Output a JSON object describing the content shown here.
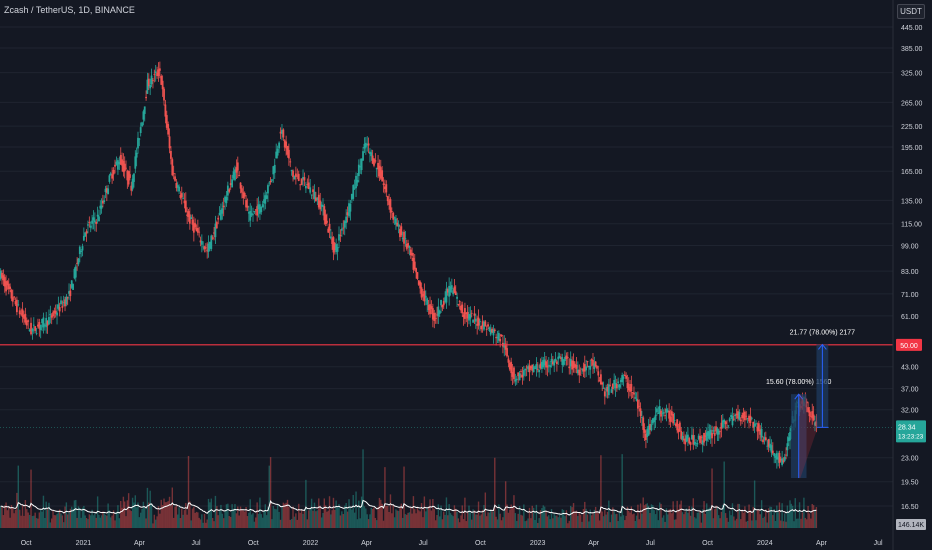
{
  "header": {
    "symbol_title": "Zcash / TetherUS, 1D, BINANCE",
    "unit_label": "USDT"
  },
  "colors": {
    "background": "#141823",
    "up": "#26a69a",
    "down": "#ef5350",
    "support_line": "#f23645",
    "projection_fill": "#1e3a5f",
    "projection_stroke": "#2962ff",
    "volume_ma": "#ffffff",
    "text": "#d1d4dc"
  },
  "chart_data": {
    "type": "candlestick",
    "y_scale": "log",
    "y_ticks": [
      "445.00",
      "385.00",
      "325.00",
      "265.00",
      "225.00",
      "195.00",
      "165.00",
      "135.00",
      "115.00",
      "99.00",
      "83.00",
      "71.00",
      "61.00",
      "50.00",
      "43.00",
      "37.00",
      "32.00",
      "28.34",
      "23.00",
      "19.50",
      "16.50"
    ],
    "y_axis_labels": [
      "445.00",
      "385.00",
      "325.00",
      "265.00",
      "225.00",
      "195.00",
      "165.00",
      "135.00",
      "115.00",
      "99.00",
      "83.00",
      "71.00",
      "61.00",
      "43.00",
      "37.00",
      "32.00",
      "23.00",
      "19.50",
      "16.50"
    ],
    "x_ticks": [
      "Oct",
      "2021",
      "Apr",
      "Jul",
      "Oct",
      "2022",
      "Apr",
      "Jul",
      "Oct",
      "2023",
      "Apr",
      "Jul",
      "Oct",
      "2024",
      "Apr",
      "Jul"
    ],
    "price_path": [
      {
        "date": "2020-08-20",
        "price": 82
      },
      {
        "date": "2020-09-15",
        "price": 66
      },
      {
        "date": "2020-10-10",
        "price": 55
      },
      {
        "date": "2020-11-10",
        "price": 60
      },
      {
        "date": "2020-12-10",
        "price": 70
      },
      {
        "date": "2021-01-05",
        "price": 110
      },
      {
        "date": "2021-01-25",
        "price": 120
      },
      {
        "date": "2021-02-15",
        "price": 160
      },
      {
        "date": "2021-03-01",
        "price": 180
      },
      {
        "date": "2021-03-20",
        "price": 150
      },
      {
        "date": "2021-04-15",
        "price": 300
      },
      {
        "date": "2021-05-05",
        "price": 330
      },
      {
        "date": "2021-05-25",
        "price": 165
      },
      {
        "date": "2021-06-20",
        "price": 120
      },
      {
        "date": "2021-07-20",
        "price": 95
      },
      {
        "date": "2021-08-20",
        "price": 140
      },
      {
        "date": "2021-09-05",
        "price": 170
      },
      {
        "date": "2021-09-25",
        "price": 120
      },
      {
        "date": "2021-10-15",
        "price": 130
      },
      {
        "date": "2021-11-01",
        "price": 160
      },
      {
        "date": "2021-11-15",
        "price": 220
      },
      {
        "date": "2021-12-05",
        "price": 160
      },
      {
        "date": "2021-12-28",
        "price": 150
      },
      {
        "date": "2022-01-20",
        "price": 130
      },
      {
        "date": "2022-02-10",
        "price": 95
      },
      {
        "date": "2022-03-05",
        "price": 130
      },
      {
        "date": "2022-04-01",
        "price": 200
      },
      {
        "date": "2022-04-25",
        "price": 160
      },
      {
        "date": "2022-05-15",
        "price": 120
      },
      {
        "date": "2022-06-10",
        "price": 95
      },
      {
        "date": "2022-06-25",
        "price": 75
      },
      {
        "date": "2022-07-20",
        "price": 60
      },
      {
        "date": "2022-08-15",
        "price": 75
      },
      {
        "date": "2022-09-05",
        "price": 62
      },
      {
        "date": "2022-10-10",
        "price": 57
      },
      {
        "date": "2022-11-05",
        "price": 52
      },
      {
        "date": "2022-11-25",
        "price": 40
      },
      {
        "date": "2022-12-20",
        "price": 42
      },
      {
        "date": "2023-01-20",
        "price": 44
      },
      {
        "date": "2023-02-15",
        "price": 45
      },
      {
        "date": "2023-03-10",
        "price": 42
      },
      {
        "date": "2023-04-01",
        "price": 44
      },
      {
        "date": "2023-04-20",
        "price": 36
      },
      {
        "date": "2023-05-20",
        "price": 40
      },
      {
        "date": "2023-06-10",
        "price": 34
      },
      {
        "date": "2023-06-25",
        "price": 27
      },
      {
        "date": "2023-07-15",
        "price": 32
      },
      {
        "date": "2023-08-10",
        "price": 30
      },
      {
        "date": "2023-08-25",
        "price": 26
      },
      {
        "date": "2023-09-20",
        "price": 26
      },
      {
        "date": "2023-10-20",
        "price": 28
      },
      {
        "date": "2023-11-20",
        "price": 31
      },
      {
        "date": "2023-12-10",
        "price": 30
      },
      {
        "date": "2023-12-28",
        "price": 27
      },
      {
        "date": "2024-01-15",
        "price": 24
      },
      {
        "date": "2024-02-01",
        "price": 22
      },
      {
        "date": "2024-02-20",
        "price": 32
      },
      {
        "date": "2024-03-05",
        "price": 34
      },
      {
        "date": "2024-03-25",
        "price": 28.34
      }
    ],
    "horizontal_line": {
      "price": 50.0,
      "label": "50.00"
    },
    "last_price": {
      "value": "28.34",
      "countdown": "13:23:23"
    },
    "volume_label": "146.14K",
    "measures": [
      {
        "label": "15.60 (78.00%) 1560",
        "from_price": 20.0,
        "to_price": 35.6,
        "start": "2024-02-12",
        "end": "2024-03-08"
      },
      {
        "label": "21.77 (78.00%) 2177",
        "from_price": 28.34,
        "to_price": 50.11,
        "start": "2024-03-24",
        "end": "2024-04-12"
      }
    ],
    "triangle": {
      "points": [
        {
          "date": "2024-02-26",
          "price": 20.0
        },
        {
          "date": "2024-02-26",
          "price": 35.6
        },
        {
          "date": "2024-03-25",
          "price": 28.34
        }
      ]
    }
  }
}
